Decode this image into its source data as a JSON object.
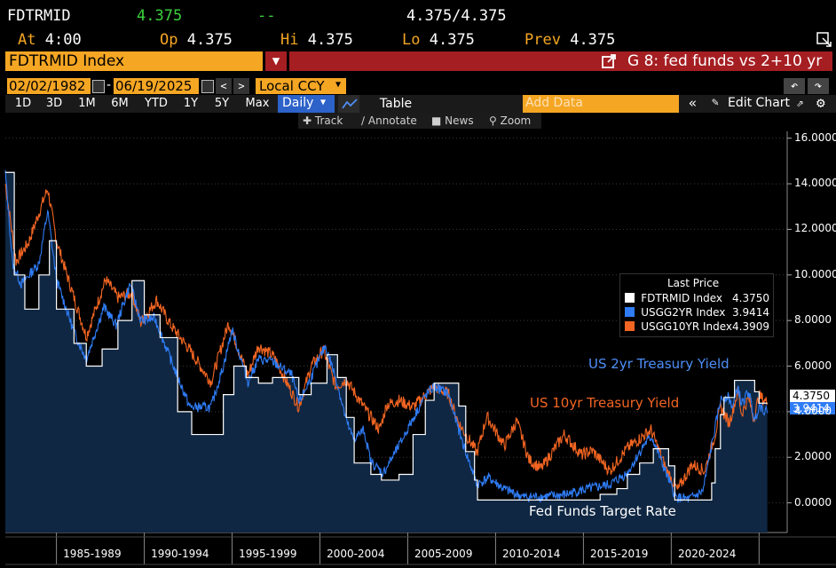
{
  "quote": {
    "ticker": "FDTRMID",
    "last": "4.375",
    "change": "--",
    "bid_ask": "4.375/4.375",
    "at_label": "At",
    "at_time": "4:00",
    "op_label": "Op",
    "op": "4.375",
    "hi_label": "Hi",
    "hi": "4.375",
    "lo_label": "Lo",
    "lo": "4.375",
    "prev_label": "Prev",
    "prev": "4.375"
  },
  "security_bar": {
    "security": "FDTRMID Index",
    "chart_title": "G 8: fed funds vs 2+10 yr"
  },
  "date_bar": {
    "start_date": "02/02/1982",
    "separator": "-",
    "end_date": "06/19/2025",
    "currency": "Local CCY"
  },
  "toolbar": {
    "ranges": [
      "1D",
      "3D",
      "1M",
      "6M",
      "YTD",
      "1Y",
      "5Y",
      "Max"
    ],
    "frequency": "Daily",
    "table_label": "Table",
    "add_data_placeholder": "Add Data",
    "edit_chart": "Edit Chart"
  },
  "tools": {
    "track": "Track",
    "annotate": "Annotate",
    "news": "News",
    "zoom": "Zoom"
  },
  "legend": {
    "title": "Last Price",
    "rows": [
      {
        "name": "FDTRMID Index",
        "value": "4.3750",
        "color": "#ffffff"
      },
      {
        "name": "USGG2YR Index",
        "value": "3.9414",
        "color": "#2f7cf6"
      },
      {
        "name": "USGG10YR Index",
        "value": "4.3909",
        "color": "#f26522"
      }
    ]
  },
  "annotations": {
    "us2": "US 2yr Treasury Yield",
    "us10": "US 10yr Treasury Yield",
    "fed": "Fed Funds Target Rate"
  },
  "right_tags": {
    "fed": "4.3750",
    "us2": "3.9414"
  },
  "chart_data": {
    "type": "line",
    "x_labels": [
      "1985-1989",
      "1990-1994",
      "1995-1999",
      "2000-2004",
      "2005-2009",
      "2010-2014",
      "2015-2019",
      "2020-2024"
    ],
    "y_ticks": [
      "16.0000",
      "14.0000",
      "12.0000",
      "10.0000",
      "8.0000",
      "6.0000",
      "4.0000",
      "2.0000",
      "0.0000"
    ],
    "ylim": [
      -1.3,
      16.3
    ],
    "xlim": [
      1982.09,
      2026.6
    ],
    "series": [
      {
        "name": "FDTRMID Index",
        "color": "#ffffff",
        "points": [
          [
            1982.09,
            14.5
          ],
          [
            1982.6,
            10.0
          ],
          [
            1983.2,
            8.5
          ],
          [
            1984.0,
            10.0
          ],
          [
            1984.6,
            11.5
          ],
          [
            1985.0,
            8.5
          ],
          [
            1986.0,
            7.0
          ],
          [
            1986.7,
            6.0
          ],
          [
            1987.6,
            6.75
          ],
          [
            1988.5,
            8.0
          ],
          [
            1989.3,
            9.75
          ],
          [
            1990.0,
            8.25
          ],
          [
            1990.9,
            7.25
          ],
          [
            1991.9,
            4.0
          ],
          [
            1992.7,
            3.0
          ],
          [
            1993.9,
            3.0
          ],
          [
            1994.5,
            4.75
          ],
          [
            1995.1,
            6.0
          ],
          [
            1995.8,
            5.5
          ],
          [
            1996.5,
            5.25
          ],
          [
            1997.3,
            5.5
          ],
          [
            1998.8,
            4.75
          ],
          [
            1999.5,
            5.25
          ],
          [
            2000.4,
            6.5
          ],
          [
            2001.0,
            5.5
          ],
          [
            2001.5,
            3.75
          ],
          [
            2001.95,
            1.75
          ],
          [
            2002.9,
            1.25
          ],
          [
            2003.5,
            1.0
          ],
          [
            2004.5,
            1.25
          ],
          [
            2005.3,
            3.0
          ],
          [
            2006.0,
            4.5
          ],
          [
            2006.5,
            5.25
          ],
          [
            2007.6,
            5.25
          ],
          [
            2007.9,
            4.25
          ],
          [
            2008.3,
            2.25
          ],
          [
            2008.8,
            1.0
          ],
          [
            2008.97,
            0.125
          ],
          [
            2015.95,
            0.375
          ],
          [
            2016.9,
            0.625
          ],
          [
            2017.5,
            1.25
          ],
          [
            2018.2,
            1.75
          ],
          [
            2018.98,
            2.375
          ],
          [
            2019.5,
            2.375
          ],
          [
            2019.85,
            1.625
          ],
          [
            2020.2,
            0.125
          ],
          [
            2021.95,
            0.125
          ],
          [
            2022.3,
            0.875
          ],
          [
            2022.5,
            2.375
          ],
          [
            2022.8,
            3.875
          ],
          [
            2023.0,
            4.625
          ],
          [
            2023.6,
            5.375
          ],
          [
            2024.6,
            5.375
          ],
          [
            2024.75,
            4.875
          ],
          [
            2025.0,
            4.375
          ],
          [
            2025.47,
            4.375
          ]
        ]
      },
      {
        "name": "USGG2YR Index",
        "color": "#2f7cf6",
        "points": [
          [
            1982.09,
            14.5
          ],
          [
            1982.5,
            10.5
          ],
          [
            1983.0,
            9.6
          ],
          [
            1984.0,
            10.5
          ],
          [
            1984.5,
            12.8
          ],
          [
            1985.0,
            9.8
          ],
          [
            1986.0,
            7.5
          ],
          [
            1986.7,
            6.3
          ],
          [
            1987.7,
            8.6
          ],
          [
            1988.4,
            7.8
          ],
          [
            1989.2,
            9.6
          ],
          [
            1989.8,
            8.0
          ],
          [
            1990.6,
            8.1
          ],
          [
            1991.5,
            6.3
          ],
          [
            1992.6,
            4.2
          ],
          [
            1993.8,
            4.2
          ],
          [
            1994.5,
            6.0
          ],
          [
            1995.0,
            7.6
          ],
          [
            1995.9,
            5.3
          ],
          [
            1996.5,
            6.3
          ],
          [
            1997.3,
            6.2
          ],
          [
            1998.4,
            5.6
          ],
          [
            1998.8,
            4.4
          ],
          [
            1999.5,
            5.5
          ],
          [
            2000.3,
            6.9
          ],
          [
            2000.9,
            5.5
          ],
          [
            2001.5,
            3.6
          ],
          [
            2001.9,
            2.8
          ],
          [
            2002.5,
            3.2
          ],
          [
            2002.9,
            1.8
          ],
          [
            2003.6,
            1.3
          ],
          [
            2004.5,
            2.5
          ],
          [
            2005.3,
            3.7
          ],
          [
            2006.0,
            4.7
          ],
          [
            2006.5,
            5.1
          ],
          [
            2007.3,
            4.8
          ],
          [
            2007.9,
            3.2
          ],
          [
            2008.4,
            2.0
          ],
          [
            2008.95,
            0.8
          ],
          [
            2009.6,
            1.1
          ],
          [
            2010.5,
            0.6
          ],
          [
            2011.6,
            0.25
          ],
          [
            2012.9,
            0.28
          ],
          [
            2013.9,
            0.35
          ],
          [
            2014.6,
            0.5
          ],
          [
            2015.5,
            0.65
          ],
          [
            2016.5,
            0.8
          ],
          [
            2017.5,
            1.3
          ],
          [
            2018.5,
            2.6
          ],
          [
            2018.9,
            2.9
          ],
          [
            2019.6,
            1.5
          ],
          [
            2020.25,
            0.25
          ],
          [
            2021.0,
            0.15
          ],
          [
            2021.8,
            0.5
          ],
          [
            2022.3,
            2.5
          ],
          [
            2022.8,
            4.5
          ],
          [
            2023.2,
            4.7
          ],
          [
            2023.5,
            4.2
          ],
          [
            2023.8,
            5.1
          ],
          [
            2024.0,
            4.3
          ],
          [
            2024.4,
            4.9
          ],
          [
            2024.75,
            3.6
          ],
          [
            2025.0,
            4.3
          ],
          [
            2025.47,
            3.94
          ]
        ]
      },
      {
        "name": "USGG10YR Index",
        "color": "#f26522",
        "points": [
          [
            1982.09,
            14.0
          ],
          [
            1982.7,
            10.6
          ],
          [
            1983.4,
            11.4
          ],
          [
            1984.5,
            13.8
          ],
          [
            1985.0,
            11.5
          ],
          [
            1986.0,
            9.0
          ],
          [
            1986.7,
            7.3
          ],
          [
            1987.8,
            9.8
          ],
          [
            1988.5,
            9.0
          ],
          [
            1989.3,
            9.2
          ],
          [
            1989.8,
            7.9
          ],
          [
            1990.7,
            8.9
          ],
          [
            1991.5,
            7.8
          ],
          [
            1992.5,
            6.8
          ],
          [
            1993.8,
            5.3
          ],
          [
            1994.8,
            7.9
          ],
          [
            1995.9,
            5.6
          ],
          [
            1996.5,
            6.9
          ],
          [
            1997.4,
            6.4
          ],
          [
            1998.8,
            4.2
          ],
          [
            1999.5,
            6.0
          ],
          [
            2000.2,
            6.7
          ],
          [
            2000.9,
            5.1
          ],
          [
            2001.5,
            5.4
          ],
          [
            2002.5,
            4.2
          ],
          [
            2003.4,
            3.2
          ],
          [
            2003.8,
            4.3
          ],
          [
            2004.5,
            4.5
          ],
          [
            2005.3,
            4.2
          ],
          [
            2006.5,
            5.1
          ],
          [
            2007.3,
            4.8
          ],
          [
            2007.9,
            3.5
          ],
          [
            2008.95,
            2.2
          ],
          [
            2009.5,
            3.8
          ],
          [
            2010.5,
            2.5
          ],
          [
            2011.2,
            3.6
          ],
          [
            2011.9,
            1.9
          ],
          [
            2012.6,
            1.5
          ],
          [
            2013.9,
            3.0
          ],
          [
            2014.9,
            2.1
          ],
          [
            2015.5,
            2.3
          ],
          [
            2016.5,
            1.4
          ],
          [
            2017.5,
            2.4
          ],
          [
            2018.85,
            3.2
          ],
          [
            2019.7,
            1.5
          ],
          [
            2020.35,
            0.55
          ],
          [
            2021.2,
            1.7
          ],
          [
            2021.9,
            1.4
          ],
          [
            2022.5,
            3.0
          ],
          [
            2022.8,
            4.2
          ],
          [
            2023.3,
            3.5
          ],
          [
            2023.8,
            4.9
          ],
          [
            2024.0,
            3.9
          ],
          [
            2024.4,
            4.6
          ],
          [
            2024.7,
            3.7
          ],
          [
            2025.0,
            4.7
          ],
          [
            2025.47,
            4.39
          ]
        ]
      }
    ]
  }
}
